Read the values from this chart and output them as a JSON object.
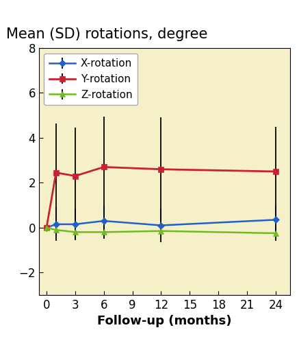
{
  "title": "Mean (SD) rotations, degree",
  "xlabel": "Follow-up (months)",
  "background_color": "#f5f0c8",
  "x_ticks": [
    0,
    3,
    6,
    9,
    12,
    15,
    18,
    21,
    24
  ],
  "xlim": [
    -0.8,
    25.5
  ],
  "ylim": [
    -3,
    8
  ],
  "y_ticks": [
    -2,
    0,
    2,
    4,
    6,
    8
  ],
  "series": {
    "X-rotation": {
      "x": [
        0,
        1,
        3,
        6,
        12,
        24
      ],
      "y": [
        0.0,
        0.15,
        0.15,
        0.3,
        0.1,
        0.35
      ],
      "yerr_lo": [
        0.0,
        0.75,
        0.7,
        0.7,
        0.75,
        0.65
      ],
      "yerr_hi": [
        0.0,
        0.75,
        0.7,
        0.7,
        0.75,
        0.65
      ],
      "color": "#2060cc",
      "marker": "D",
      "linewidth": 1.8,
      "markersize": 5
    },
    "Y-rotation": {
      "x": [
        0,
        1,
        3,
        6,
        12,
        24
      ],
      "y": [
        0.0,
        2.45,
        2.3,
        2.7,
        2.6,
        2.5
      ],
      "yerr_lo": [
        0.0,
        2.2,
        2.15,
        2.25,
        2.3,
        2.0
      ],
      "yerr_hi": [
        0.0,
        2.2,
        2.15,
        2.25,
        2.3,
        2.0
      ],
      "color": "#cc2030",
      "marker": "s",
      "linewidth": 2.0,
      "markersize": 6
    },
    "Z-rotation": {
      "x": [
        0,
        1,
        3,
        6,
        12,
        24
      ],
      "y": [
        0.0,
        -0.1,
        -0.2,
        -0.2,
        -0.15,
        -0.25
      ],
      "yerr_lo": [
        0.0,
        0.25,
        0.3,
        0.3,
        0.25,
        0.35
      ],
      "yerr_hi": [
        0.0,
        0.25,
        0.3,
        0.3,
        0.25,
        0.35
      ],
      "color": "#70bb20",
      "marker": "^",
      "linewidth": 1.8,
      "markersize": 6
    }
  },
  "legend_order": [
    "X-rotation",
    "Y-rotation",
    "Z-rotation"
  ],
  "title_fontsize": 15,
  "axis_label_fontsize": 13,
  "tick_fontsize": 12,
  "legend_fontsize": 11
}
